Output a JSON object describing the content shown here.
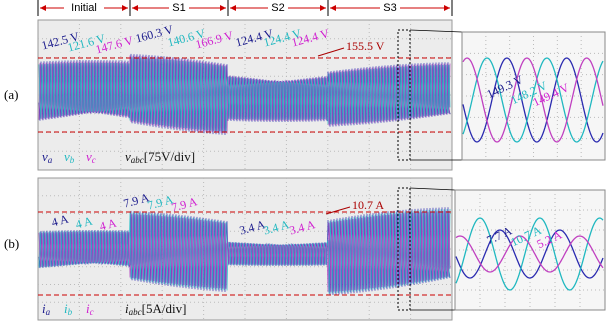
{
  "phases": [
    "Initial",
    "S1",
    "S2",
    "S3"
  ],
  "panel_a": {
    "tag": "(a)",
    "labels": [
      "142.5 V",
      "121.6 V",
      "147.6 V",
      "160.3 V",
      "140.6 V",
      "166.9 V",
      "124.4 V",
      "124.4 V",
      "124.4 V",
      "155.5 V"
    ],
    "legend": [
      {
        "symbol": "v",
        "sub": "a"
      },
      {
        "symbol": "v",
        "sub": "b"
      },
      {
        "symbol": "v",
        "sub": "c"
      }
    ],
    "scale": {
      "symbol": "v",
      "sub": "abc",
      "text": "[75V/div]"
    },
    "zoom_labels": [
      "149.3 V",
      "148.2 V",
      "149.4 V"
    ]
  },
  "panel_b": {
    "tag": "(b)",
    "labels": [
      "4 A",
      "4 A",
      "4 A",
      "7.9 A",
      "7.9 A",
      "7.9 A",
      "3.4 A",
      "3.4 A",
      "3.4 A",
      "10.7 A"
    ],
    "legend": [
      {
        "symbol": "i",
        "sub": "a"
      },
      {
        "symbol": "i",
        "sub": "b"
      },
      {
        "symbol": "i",
        "sub": "c"
      }
    ],
    "scale": {
      "symbol": "i",
      "sub": "abc",
      "text": "[5A/div]"
    },
    "zoom_labels": [
      "7.7 A",
      "10.7 A",
      "5.2 A"
    ]
  }
}
